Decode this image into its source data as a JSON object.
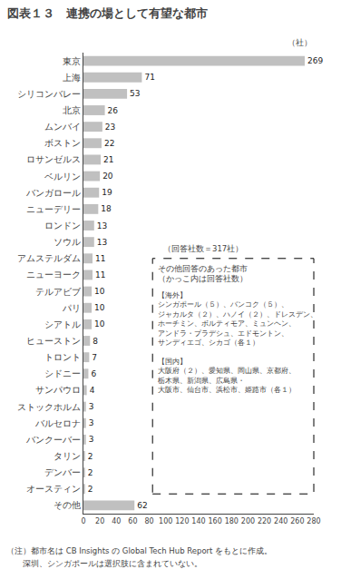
{
  "chart_data": {
    "type": "bar",
    "orientation": "horizontal",
    "title": "図表１３　連携の場として有望な都市",
    "unit_label": "（社）",
    "categories": [
      "東京",
      "上海",
      "シリコンバレー",
      "北京",
      "ムンバイ",
      "ボストン",
      "ロサンゼルス",
      "ベルリン",
      "バンガロール",
      "ニューデリー",
      "ロンドン",
      "ソウル",
      "アムステルダム",
      "ニューヨーク",
      "テルアビブ",
      "パリ",
      "シアトル",
      "ヒューストン",
      "トロント",
      "シドニー",
      "サンパウロ",
      "ストックホルム",
      "バルセロナ",
      "バンクーバー",
      "タリン",
      "デンバー",
      "オースティン",
      "その他"
    ],
    "values": [
      269,
      71,
      53,
      26,
      23,
      22,
      21,
      20,
      19,
      18,
      13,
      13,
      11,
      11,
      10,
      10,
      10,
      8,
      7,
      6,
      4,
      3,
      3,
      3,
      2,
      2,
      2,
      62
    ],
    "color": "#c0c0c0",
    "xlim": [
      0,
      280
    ],
    "xticks": [
      0,
      20,
      40,
      60,
      80,
      100,
      120,
      140,
      160,
      180,
      200,
      220,
      240,
      260,
      280
    ],
    "grid": false,
    "data_labels": true,
    "annotation_note": "（回答社数＝317社）",
    "box_title": "その他回答のあった都市\n（かっこ内は回答社数）",
    "box_content": "【海外】\nシンガポール（５）、バンコク（５）、\nジャカルタ（２）、ハノイ（２）、ドレスデン、\nホーチミン、ボルティモア、ミュンヘン、\nアンドラ・プラデシュ、エドモントン、\nサンディエゴ、シカゴ（各１）\n\n【国内】\n大阪府（２）、愛知県、岡山県、京都府、\n栃木県、新潟県、広島県・\n大阪市、仙台市、浜松市、姫路市（各１）",
    "notes": [
      "（注）都市名は CB Insights の Global Tech Hub Report をもとに作成。",
      "　　深圳、シンガポールは選択肢に含まれていない。"
    ]
  }
}
